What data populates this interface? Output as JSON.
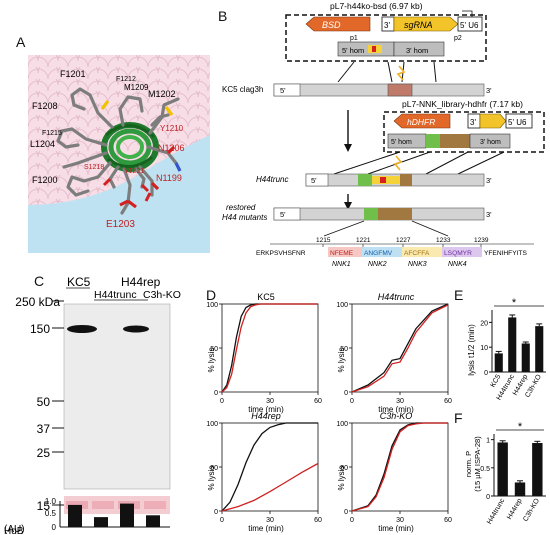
{
  "panel_labels": {
    "A": "A",
    "B": "B",
    "C": "C",
    "D": "D",
    "E": "E",
    "F": "F"
  },
  "panel_A": {
    "residues_black": [
      "F1201",
      "F1212",
      "M1209",
      "M1202",
      "F1208",
      "L1204",
      "F1215",
      "F1200"
    ],
    "residues_red": [
      "Y1210",
      "N1206",
      "N1199",
      "Y1221",
      "S1218",
      "E1203"
    ]
  },
  "panel_B": {
    "plasmid1": "pL7-h44ko-bsd (6.97 kb)",
    "bsd": "BSD",
    "sgrna": "sgRNA",
    "u6": "5' U6",
    "three_prime": "3'",
    "hom5": "5' hom",
    "hom3": "3' hom",
    "p1": "p1",
    "p2": "p2",
    "kc5_label": "KC5 clag3h",
    "five": "5'",
    "three": "3'",
    "plasmid2": "pL7-NNK_library-hdhfr (7.17 kb)",
    "hdhfr": "hDHFR",
    "h44trunc": "H44trunc",
    "restored": "restored\nH44 mutants",
    "restored_l1": "restored",
    "restored_l2": "H44 mutants",
    "ticks": [
      "1215",
      "1221",
      "1227",
      "1233",
      "1239"
    ],
    "seq_pre": "ERKPSVHSFNR",
    "seq_nnk1": "NFEME",
    "seq_nnk2": "ANGFMV",
    "seq_nnk3": "AFCFFA",
    "seq_nnk4": "LSQMYR",
    "seq_post": "YFENIHFYITS",
    "nnk": [
      "NNK1",
      "NNK2",
      "NNK3",
      "NNK4"
    ]
  },
  "panel_C": {
    "lanes": [
      "KC5",
      "H44trunc",
      "H44rep",
      "C3h-KO"
    ],
    "kda_unit": "250 kDa",
    "markers": [
      "150",
      "50",
      "37",
      "25"
    ],
    "marker_15": "15",
    "hgb_label_1": "HgB",
    "hgb_label_2": "(AU)",
    "hgb_ticks": [
      "1.0",
      "0.5",
      "0"
    ],
    "hgb_values": [
      0.85,
      0.38,
      0.9,
      0.45
    ]
  },
  "panel_D": {
    "ylabel": "% lysis",
    "xlabel": "time (min)",
    "titles": [
      "KC5",
      "H44trunc",
      "H44rep",
      "C3h-KO"
    ],
    "yticks": [
      "100",
      "50",
      "0"
    ],
    "xticks": [
      "0",
      "30",
      "60"
    ]
  },
  "panel_E": {
    "ylabel": "lysis t1/2 (min)",
    "categories": [
      "KC5",
      "H44trunc",
      "H44rep",
      "C3h-KO"
    ],
    "yticks": [
      "0",
      "10",
      "20"
    ],
    "star": "*"
  },
  "panel_F": {
    "ylabel_1": "norm. P",
    "ylabel_2": "(15 µM ISPA-28)",
    "categories": [
      "H44trunc",
      "H44rep",
      "C3h-KO"
    ],
    "yticks": [
      "0",
      "0.5",
      "1"
    ],
    "star": "*"
  },
  "chart_data": [
    {
      "type": "line",
      "title": "KC5",
      "xlabel": "time (min)",
      "ylabel": "% lysis",
      "xlim": [
        0,
        60
      ],
      "ylim": [
        0,
        100
      ],
      "series": [
        {
          "color": "#111111",
          "x": [
            0,
            3,
            6,
            9,
            12,
            15,
            18,
            21,
            60
          ],
          "y": [
            0,
            8,
            30,
            62,
            86,
            96,
            99,
            100,
            100
          ]
        },
        {
          "color": "#d02020",
          "x": [
            0,
            3,
            6,
            9,
            12,
            15,
            18,
            21,
            24,
            60
          ],
          "y": [
            0,
            5,
            20,
            48,
            74,
            90,
            97,
            99,
            100,
            100
          ]
        }
      ]
    },
    {
      "type": "line",
      "title": "H44trunc",
      "xlabel": "time (min)",
      "ylabel": "% lysis",
      "xlim": [
        0,
        60
      ],
      "ylim": [
        0,
        100
      ],
      "series": [
        {
          "color": "#111111",
          "x": [
            0,
            10,
            20,
            25,
            30,
            35,
            40,
            50,
            60
          ],
          "y": [
            0,
            8,
            22,
            36,
            38,
            55,
            72,
            92,
            100
          ]
        },
        {
          "color": "#d02020",
          "x": [
            0,
            10,
            20,
            25,
            30,
            35,
            40,
            50,
            60
          ],
          "y": [
            0,
            6,
            18,
            32,
            34,
            50,
            68,
            90,
            99
          ]
        }
      ]
    },
    {
      "type": "line",
      "title": "H44rep",
      "xlabel": "time (min)",
      "ylabel": "% lysis",
      "xlim": [
        0,
        60
      ],
      "ylim": [
        0,
        100
      ],
      "series": [
        {
          "color": "#111111",
          "x": [
            0,
            5,
            10,
            15,
            20,
            25,
            30,
            35,
            40,
            60
          ],
          "y": [
            0,
            10,
            30,
            55,
            75,
            88,
            95,
            98,
            100,
            100
          ]
        },
        {
          "color": "#d02020",
          "x": [
            0,
            10,
            20,
            30,
            40,
            50,
            60
          ],
          "y": [
            0,
            5,
            12,
            22,
            33,
            44,
            54
          ]
        }
      ]
    },
    {
      "type": "line",
      "title": "C3h-KO",
      "xlabel": "time (min)",
      "ylabel": "% lysis",
      "xlim": [
        0,
        60
      ],
      "ylim": [
        0,
        100
      ],
      "series": [
        {
          "color": "#111111",
          "x": [
            0,
            10,
            15,
            20,
            25,
            30,
            35,
            40,
            45,
            60
          ],
          "y": [
            0,
            6,
            18,
            42,
            74,
            92,
            98,
            100,
            100,
            100
          ]
        },
        {
          "color": "#d02020",
          "x": [
            0,
            10,
            15,
            20,
            25,
            30,
            35,
            40,
            45,
            60
          ],
          "y": [
            0,
            5,
            16,
            38,
            70,
            90,
            97,
            99,
            100,
            100
          ]
        }
      ]
    },
    {
      "type": "bar",
      "title": "",
      "categories": [
        "KC5",
        "H44trunc",
        "H44rep",
        "C3h-KO"
      ],
      "values": [
        7.5,
        22,
        11.5,
        18.5
      ],
      "errors": [
        0.8,
        1.0,
        0.6,
        0.9
      ],
      "ylabel": "lysis t1/2 (min)",
      "ylim": [
        0,
        25
      ]
    },
    {
      "type": "bar",
      "title": "",
      "categories": [
        "H44trunc",
        "H44rep",
        "C3h-KO"
      ],
      "values": [
        0.95,
        0.24,
        0.94
      ],
      "errors": [
        0.03,
        0.03,
        0.03
      ],
      "ylabel": "norm. P (15 µM ISPA-28)",
      "ylim": [
        0,
        1.1
      ]
    }
  ]
}
